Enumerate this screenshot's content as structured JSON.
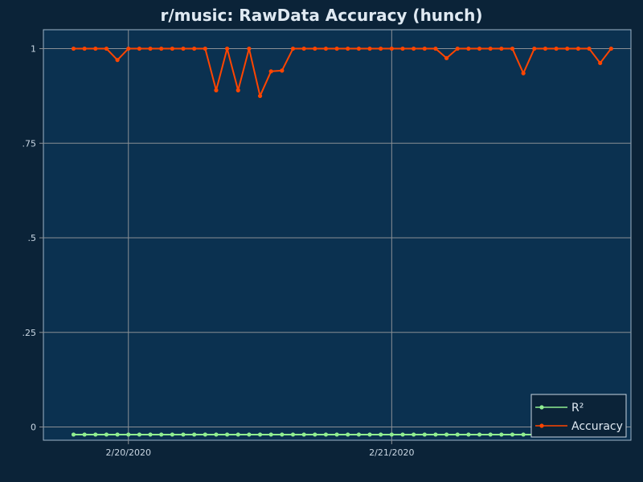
{
  "chart_data": {
    "type": "line",
    "title": "r/music: RawData Accuracy (hunch)",
    "xlabel": "",
    "ylabel": "",
    "grid": true,
    "legend_position": "bottom-right",
    "x_ticks": [
      "2/20/2020",
      "2/21/2020"
    ],
    "y_ticks": [
      {
        "value": 0,
        "label": "0"
      },
      {
        "value": 0.25,
        "label": ".25"
      },
      {
        "value": 0.5,
        "label": ".5"
      },
      {
        "value": 0.75,
        "label": ".75"
      },
      {
        "value": 1,
        "label": "1"
      }
    ],
    "ylim": [
      -0.035,
      1.05
    ],
    "x": [
      "2/19/2020 19:00",
      "2/19/2020 20:00",
      "2/19/2020 21:00",
      "2/19/2020 22:00",
      "2/19/2020 23:00",
      "2/20/2020 00:00",
      "2/20/2020 01:00",
      "2/20/2020 02:00",
      "2/20/2020 03:00",
      "2/20/2020 04:00",
      "2/20/2020 05:00",
      "2/20/2020 06:00",
      "2/20/2020 07:00",
      "2/20/2020 08:00",
      "2/20/2020 09:00",
      "2/20/2020 10:00",
      "2/20/2020 11:00",
      "2/20/2020 12:00",
      "2/20/2020 13:00",
      "2/20/2020 14:00",
      "2/20/2020 15:00",
      "2/20/2020 16:00",
      "2/20/2020 17:00",
      "2/20/2020 18:00",
      "2/20/2020 19:00",
      "2/20/2020 20:00",
      "2/20/2020 21:00",
      "2/20/2020 22:00",
      "2/20/2020 23:00",
      "2/21/2020 00:00",
      "2/21/2020 01:00",
      "2/21/2020 02:00",
      "2/21/2020 03:00",
      "2/21/2020 04:00",
      "2/21/2020 05:00",
      "2/21/2020 06:00",
      "2/21/2020 07:00",
      "2/21/2020 08:00",
      "2/21/2020 09:00",
      "2/21/2020 10:00",
      "2/21/2020 11:00",
      "2/21/2020 12:00",
      "2/21/2020 13:00",
      "2/21/2020 14:00",
      "2/21/2020 15:00",
      "2/21/2020 16:00",
      "2/21/2020 17:00",
      "2/21/2020 18:00",
      "2/21/2020 19:00",
      "2/21/2020 20:00"
    ],
    "series": [
      {
        "name": "R²",
        "color": "#90ee90",
        "values": [
          -0.02,
          -0.02,
          -0.02,
          -0.02,
          -0.02,
          -0.02,
          -0.02,
          -0.02,
          -0.02,
          -0.02,
          -0.02,
          -0.02,
          -0.02,
          -0.02,
          -0.02,
          -0.02,
          -0.02,
          -0.02,
          -0.02,
          -0.02,
          -0.02,
          -0.02,
          -0.02,
          -0.02,
          -0.02,
          -0.02,
          -0.02,
          -0.02,
          -0.02,
          -0.02,
          -0.02,
          -0.02,
          -0.02,
          -0.02,
          -0.02,
          -0.02,
          -0.02,
          -0.02,
          -0.02,
          -0.02,
          -0.02,
          -0.02,
          -0.02,
          -0.02,
          -0.02,
          -0.02,
          -0.02,
          -0.02,
          -0.02,
          -0.02
        ]
      },
      {
        "name": "Accuracy",
        "color": "#ff4500",
        "values": [
          1,
          1,
          1,
          1,
          0.97,
          1,
          1,
          1,
          1,
          1,
          1,
          1,
          1,
          0.89,
          1,
          0.89,
          1,
          0.875,
          0.94,
          0.942,
          1,
          1,
          1,
          1,
          1,
          1,
          1,
          1,
          1,
          1,
          1,
          1,
          1,
          1,
          0.975,
          1,
          1,
          1,
          1,
          1,
          1,
          0.935,
          1,
          1,
          1,
          1,
          1,
          1,
          0.962,
          1
        ]
      }
    ]
  }
}
